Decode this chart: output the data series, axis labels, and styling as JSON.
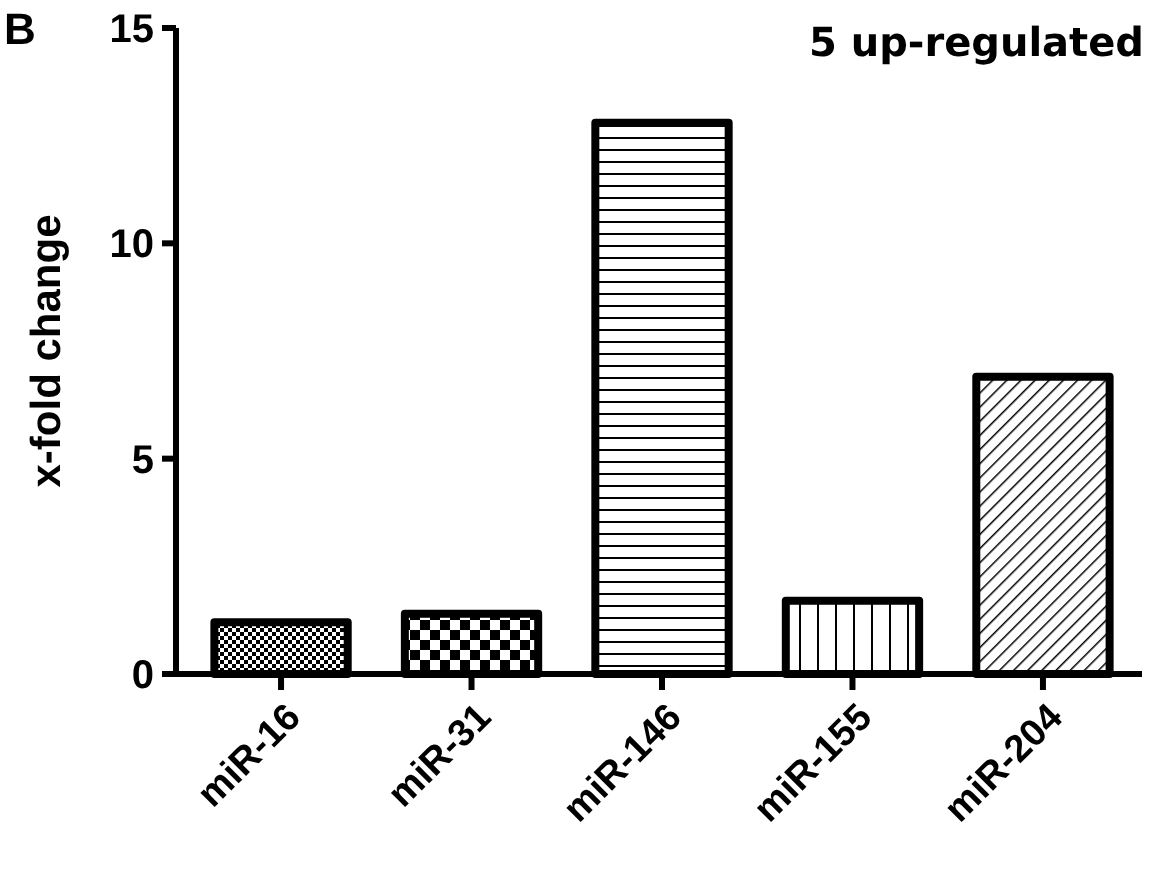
{
  "chart_data": {
    "type": "bar",
    "ylabel": "x-fold change",
    "categories": [
      "miR-16",
      "miR-31",
      "miR-146",
      "miR-155",
      "miR-204"
    ],
    "values": [
      1.2,
      1.4,
      12.8,
      1.7,
      6.9
    ],
    "color": "#000000",
    "ylim": [
      0,
      15
    ],
    "yticks": [
      0,
      5,
      10,
      15
    ],
    "grid": false,
    "annotations": [
      "B",
      "5 up-regulated"
    ]
  }
}
